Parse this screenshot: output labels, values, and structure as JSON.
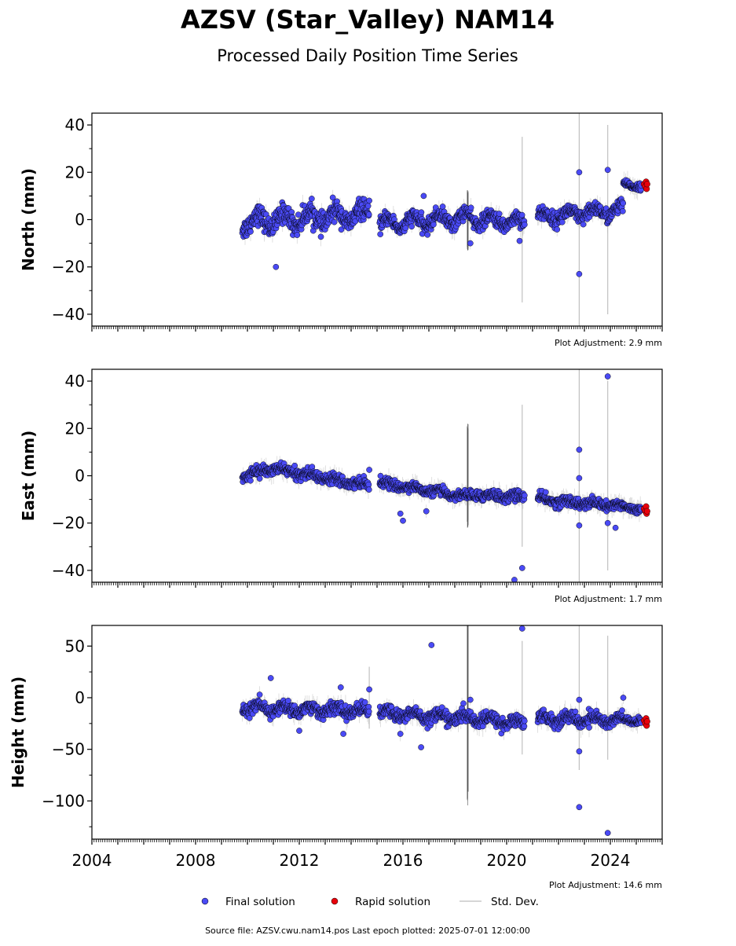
{
  "title": "AZSV (Star_Valley) NAM14",
  "subtitle": "Processed Daily Position Time Series",
  "footer": "Source file: AZSV.cwu.nam14.pos  Last epoch plotted: 2025-07-01 12:00:00",
  "legend": {
    "final": "Final solution",
    "rapid": "Rapid solution",
    "std": "Std. Dev."
  },
  "colors": {
    "final": "#4a4af5",
    "rapid": "#e8000b",
    "std": "#b0b0b0",
    "edge": "#000000"
  },
  "chart_data": [
    {
      "type": "scatter",
      "ylabel": "North (mm)",
      "adjustment": "Plot Adjustment: 2.9 mm",
      "xlim": [
        2004,
        2026
      ],
      "ylim": [
        -45,
        45
      ],
      "yticks": [
        -40,
        -20,
        0,
        20,
        40
      ],
      "xticks": [
        2004,
        2008,
        2012,
        2016,
        2020,
        2024
      ],
      "show_xticklabels": false,
      "segments": [
        {
          "x0": 2009.8,
          "x1": 2014.7,
          "y0": -1,
          "y1": 2,
          "noise": 3.5,
          "amp": 3
        },
        {
          "x0": 2015.1,
          "x1": 2018.6,
          "y0": -2,
          "y1": 1,
          "noise": 2.5,
          "amp": 2.5
        },
        {
          "x0": 2018.6,
          "x1": 2020.7,
          "y0": 0,
          "y1": -1,
          "noise": 2.5,
          "amp": 2
        },
        {
          "x0": 2021.2,
          "x1": 2024.5,
          "y0": 1,
          "y1": 4,
          "noise": 2.5,
          "amp": 2
        },
        {
          "x0": 2024.5,
          "x1": 2025.2,
          "y0": 15,
          "y1": 14,
          "noise": 1.2,
          "amp": 0.5
        }
      ],
      "outliers": [
        [
          2011.1,
          -20
        ],
        [
          2016.8,
          10
        ],
        [
          2018.6,
          -10
        ],
        [
          2020.5,
          -9
        ],
        [
          2022.8,
          20
        ],
        [
          2022.8,
          -23
        ],
        [
          2023.9,
          21
        ],
        [
          2014.7,
          8
        ]
      ],
      "rapid": [
        [
          2025.3,
          15
        ],
        [
          2025.35,
          14
        ],
        [
          2025.38,
          16
        ],
        [
          2025.4,
          13
        ],
        [
          2025.42,
          15
        ]
      ],
      "big_errors": [
        [
          2018.5,
          12
        ],
        [
          2020.6,
          35
        ],
        [
          2022.8,
          45
        ],
        [
          2023.9,
          40
        ]
      ]
    },
    {
      "type": "scatter",
      "ylabel": "East (mm)",
      "adjustment": "Plot Adjustment: 1.7 mm",
      "xlim": [
        2004,
        2026
      ],
      "ylim": [
        -45,
        45
      ],
      "yticks": [
        -40,
        -20,
        0,
        20,
        40
      ],
      "xticks": [
        2004,
        2008,
        2012,
        2016,
        2020,
        2024
      ],
      "show_xticklabels": false,
      "segments": [
        {
          "x0": 2009.8,
          "x1": 2011.0,
          "y0": 0,
          "y1": 3,
          "noise": 1.6,
          "amp": 0.8
        },
        {
          "x0": 2011.0,
          "x1": 2014.7,
          "y0": 3,
          "y1": -4,
          "noise": 1.8,
          "amp": 0.8
        },
        {
          "x0": 2015.1,
          "x1": 2018.6,
          "y0": -3,
          "y1": -9,
          "noise": 1.5,
          "amp": 0.8
        },
        {
          "x0": 2018.6,
          "x1": 2020.7,
          "y0": -8,
          "y1": -9,
          "noise": 1.8,
          "amp": 0.8
        },
        {
          "x0": 2021.2,
          "x1": 2024.5,
          "y0": -10,
          "y1": -13,
          "noise": 1.8,
          "amp": 0.8
        },
        {
          "x0": 2024.5,
          "x1": 2025.2,
          "y0": -13,
          "y1": -14,
          "noise": 1.2,
          "amp": 0.5
        }
      ],
      "outliers": [
        [
          2015.9,
          -16
        ],
        [
          2016.0,
          -19
        ],
        [
          2016.9,
          -15
        ],
        [
          2020.3,
          -44
        ],
        [
          2020.6,
          -39
        ],
        [
          2022.8,
          11
        ],
        [
          2022.8,
          -1
        ],
        [
          2022.8,
          -21
        ],
        [
          2023.9,
          42
        ],
        [
          2023.9,
          -20
        ],
        [
          2024.2,
          -22
        ],
        [
          2014.7,
          2.5
        ]
      ],
      "rapid": [
        [
          2025.3,
          -14
        ],
        [
          2025.35,
          -15
        ],
        [
          2025.38,
          -13
        ],
        [
          2025.4,
          -16
        ],
        [
          2025.42,
          -15
        ]
      ],
      "big_errors": [
        [
          2018.5,
          20
        ],
        [
          2020.6,
          30
        ],
        [
          2022.8,
          45
        ],
        [
          2023.9,
          40
        ]
      ]
    },
    {
      "type": "scatter",
      "ylabel": "Height (mm)",
      "adjustment": "Plot Adjustment: 14.6 mm",
      "xlim": [
        2004,
        2026
      ],
      "ylim": [
        -137,
        70
      ],
      "yticks": [
        -100,
        -50,
        0,
        50
      ],
      "xticks": [
        2004,
        2008,
        2012,
        2016,
        2020,
        2024
      ],
      "show_xticklabels": true,
      "segments": [
        {
          "x0": 2009.8,
          "x1": 2014.7,
          "y0": -10,
          "y1": -13,
          "noise": 5,
          "amp": 3
        },
        {
          "x0": 2015.1,
          "x1": 2018.6,
          "y0": -15,
          "y1": -20,
          "noise": 5,
          "amp": 3
        },
        {
          "x0": 2018.6,
          "x1": 2020.7,
          "y0": -20,
          "y1": -25,
          "noise": 5,
          "amp": 3
        },
        {
          "x0": 2021.2,
          "x1": 2024.5,
          "y0": -20,
          "y1": -22,
          "noise": 5,
          "amp": 3
        },
        {
          "x0": 2024.5,
          "x1": 2025.2,
          "y0": -22,
          "y1": -22,
          "noise": 3,
          "amp": 2
        }
      ],
      "outliers": [
        [
          2010.9,
          19
        ],
        [
          2012.0,
          -32
        ],
        [
          2013.6,
          10
        ],
        [
          2013.7,
          -35
        ],
        [
          2014.7,
          8
        ],
        [
          2015.9,
          -35
        ],
        [
          2016.7,
          -48
        ],
        [
          2017.1,
          51
        ],
        [
          2018.6,
          -2
        ],
        [
          2020.6,
          67
        ],
        [
          2022.8,
          -2
        ],
        [
          2022.8,
          -52
        ],
        [
          2022.8,
          -106
        ],
        [
          2023.9,
          -131
        ],
        [
          2024.5,
          0
        ]
      ],
      "rapid": [
        [
          2025.3,
          -22
        ],
        [
          2025.35,
          -25
        ],
        [
          2025.38,
          -20
        ],
        [
          2025.4,
          -27
        ],
        [
          2025.42,
          -23
        ]
      ],
      "big_errors": [
        [
          2018.5,
          95
        ],
        [
          2020.6,
          55
        ],
        [
          2022.8,
          70
        ],
        [
          2023.9,
          60
        ],
        [
          2014.7,
          30
        ]
      ]
    }
  ]
}
